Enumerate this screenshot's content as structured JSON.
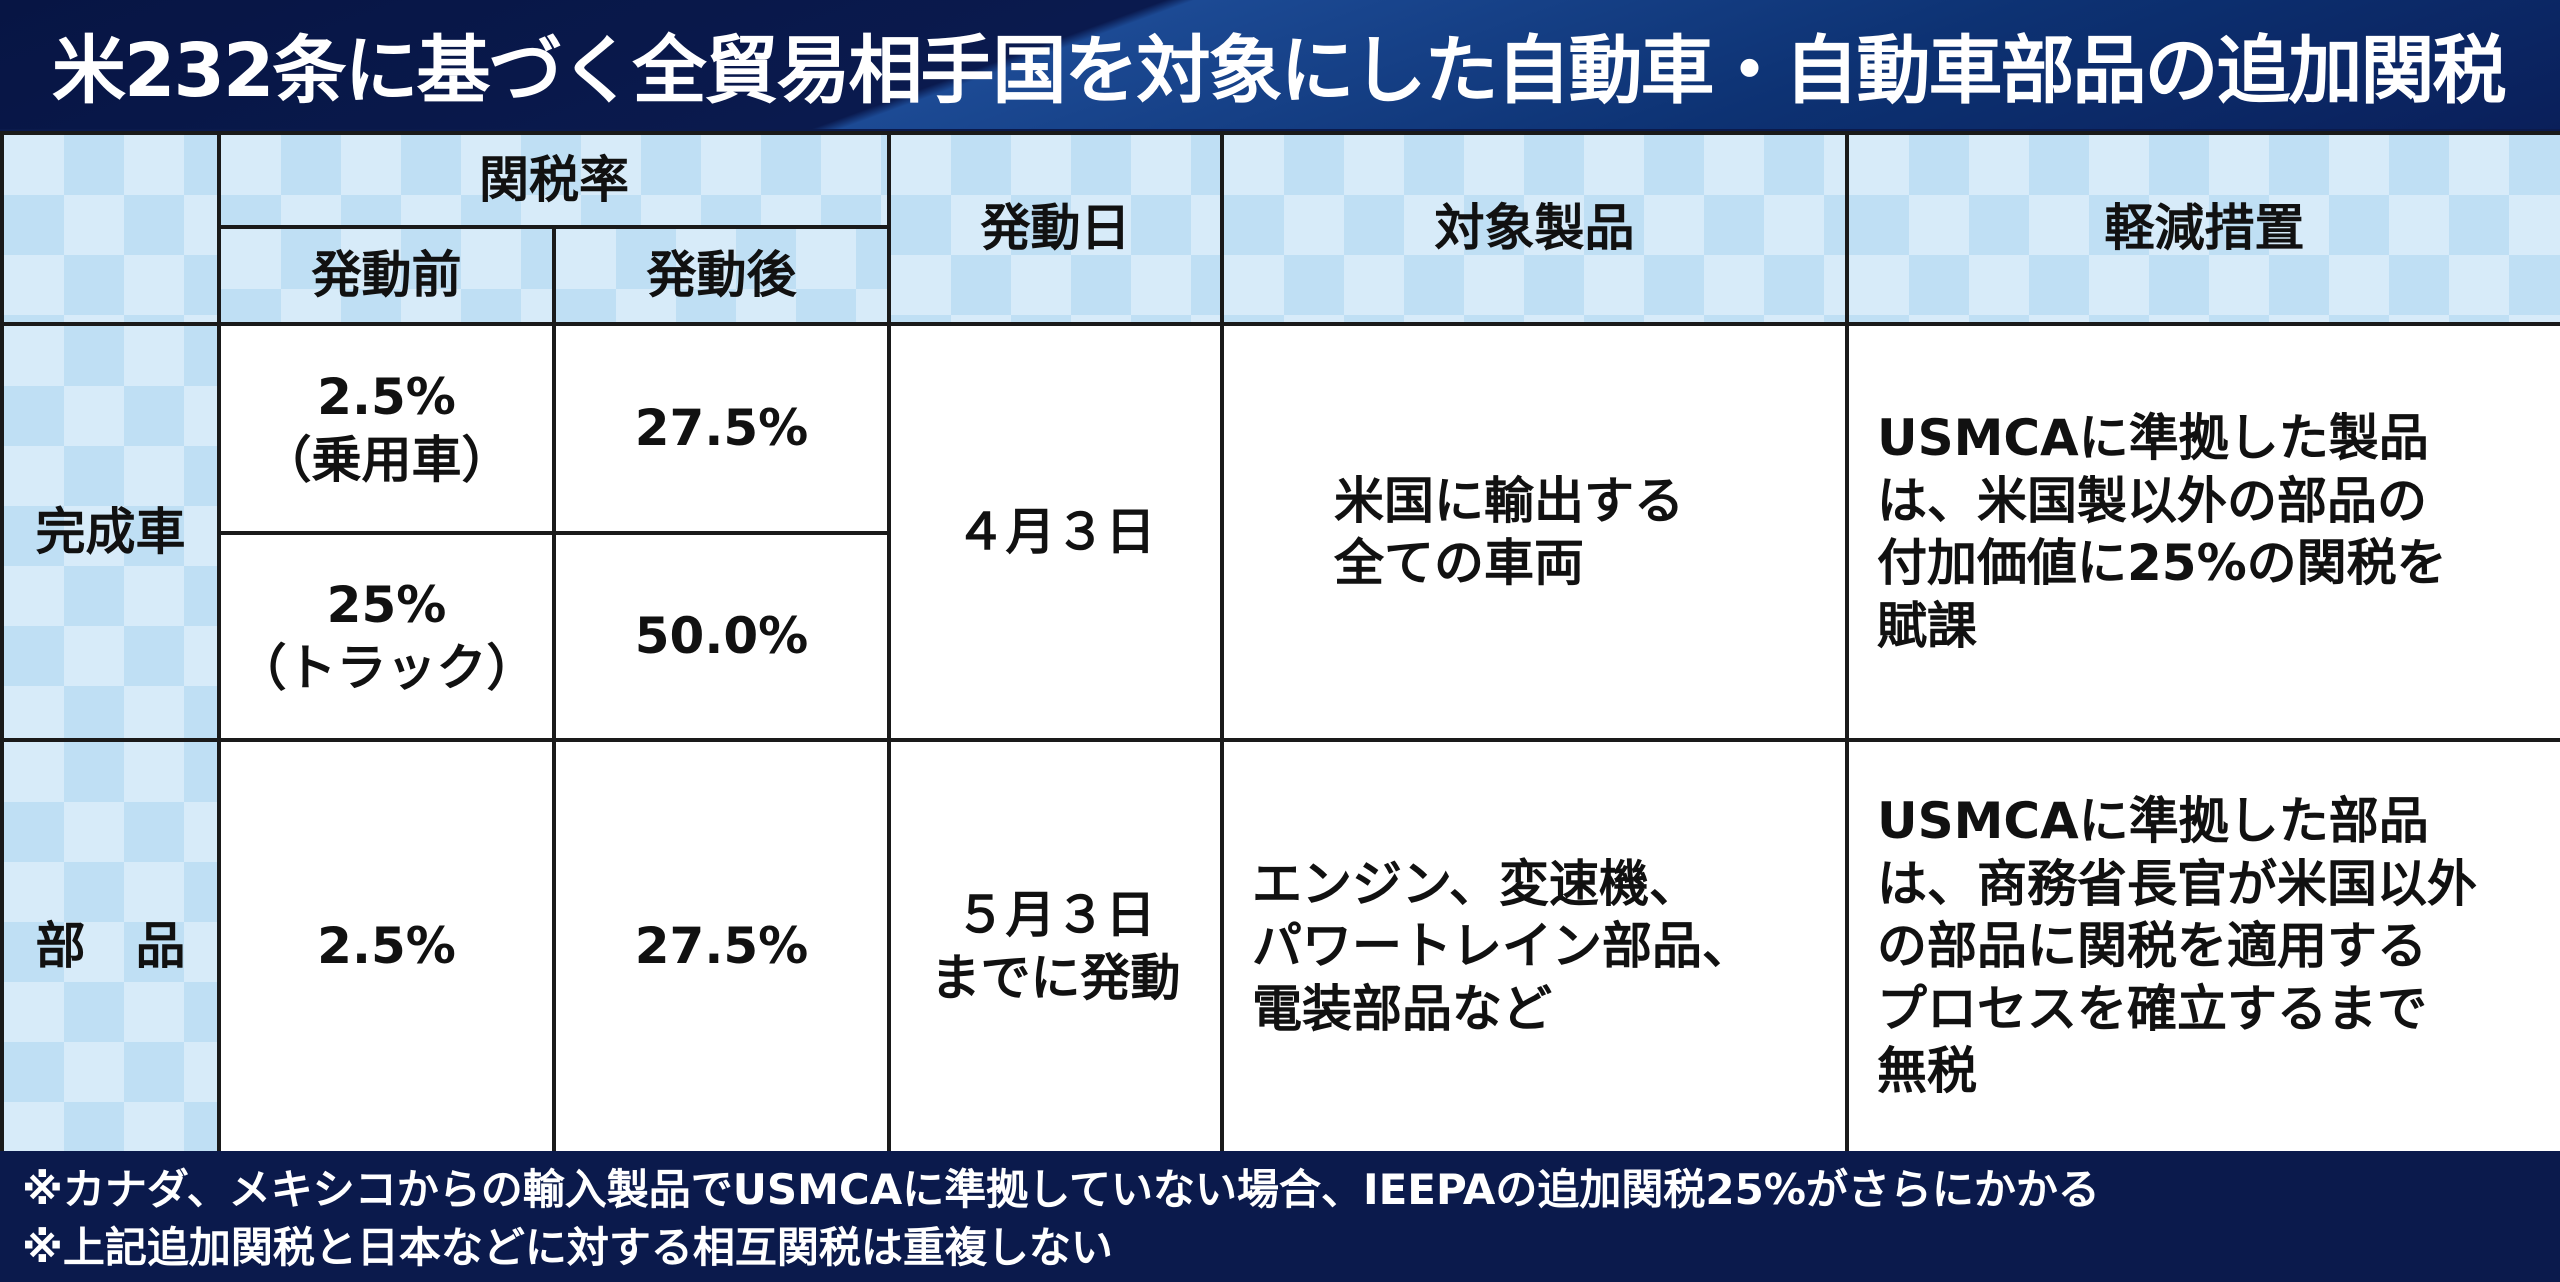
{
  "title": "米232条に基づく全貿易相手国を対象にした自動車・自動車部品の追加関税",
  "header": {
    "rate": "関税率",
    "before": "発動前",
    "after": "発動後",
    "date": "発動日",
    "products": "対象製品",
    "relief": "軽減措置"
  },
  "rows": [
    {
      "label": "完成車",
      "before1": "2.5%",
      "before1_note": "（乗用車）",
      "after1": "27.5%",
      "before2": "25%",
      "before2_note": "（トラック）",
      "after2": "50.0%",
      "date": "４月３日",
      "products": [
        "米国に輸出する",
        "全ての車両"
      ],
      "relief": [
        "USMCAに準拠した製品",
        "は、米国製以外の部品の",
        "付加価値に25%の関税を",
        "賦課"
      ]
    },
    {
      "label": "部　品",
      "before": "2.5%",
      "after": "27.5%",
      "date": [
        "５月３日",
        "までに発動"
      ],
      "products": [
        "エンジン、変速機、",
        "パワートレイン部品、",
        "電装部品など"
      ],
      "relief": [
        "USMCAに準拠した部品",
        "は、商務省長官が米国以外",
        "の部品に関税を適用する",
        "プロセスを確立するまで",
        "無税"
      ]
    }
  ],
  "notes": [
    "※カナダ、メキシコからの輸入製品でUSMCAに準拠していない場合、IEEPAの追加関税25%がさらにかかる",
    "※上記追加関税と日本などに対する相互関税は重複しない"
  ]
}
